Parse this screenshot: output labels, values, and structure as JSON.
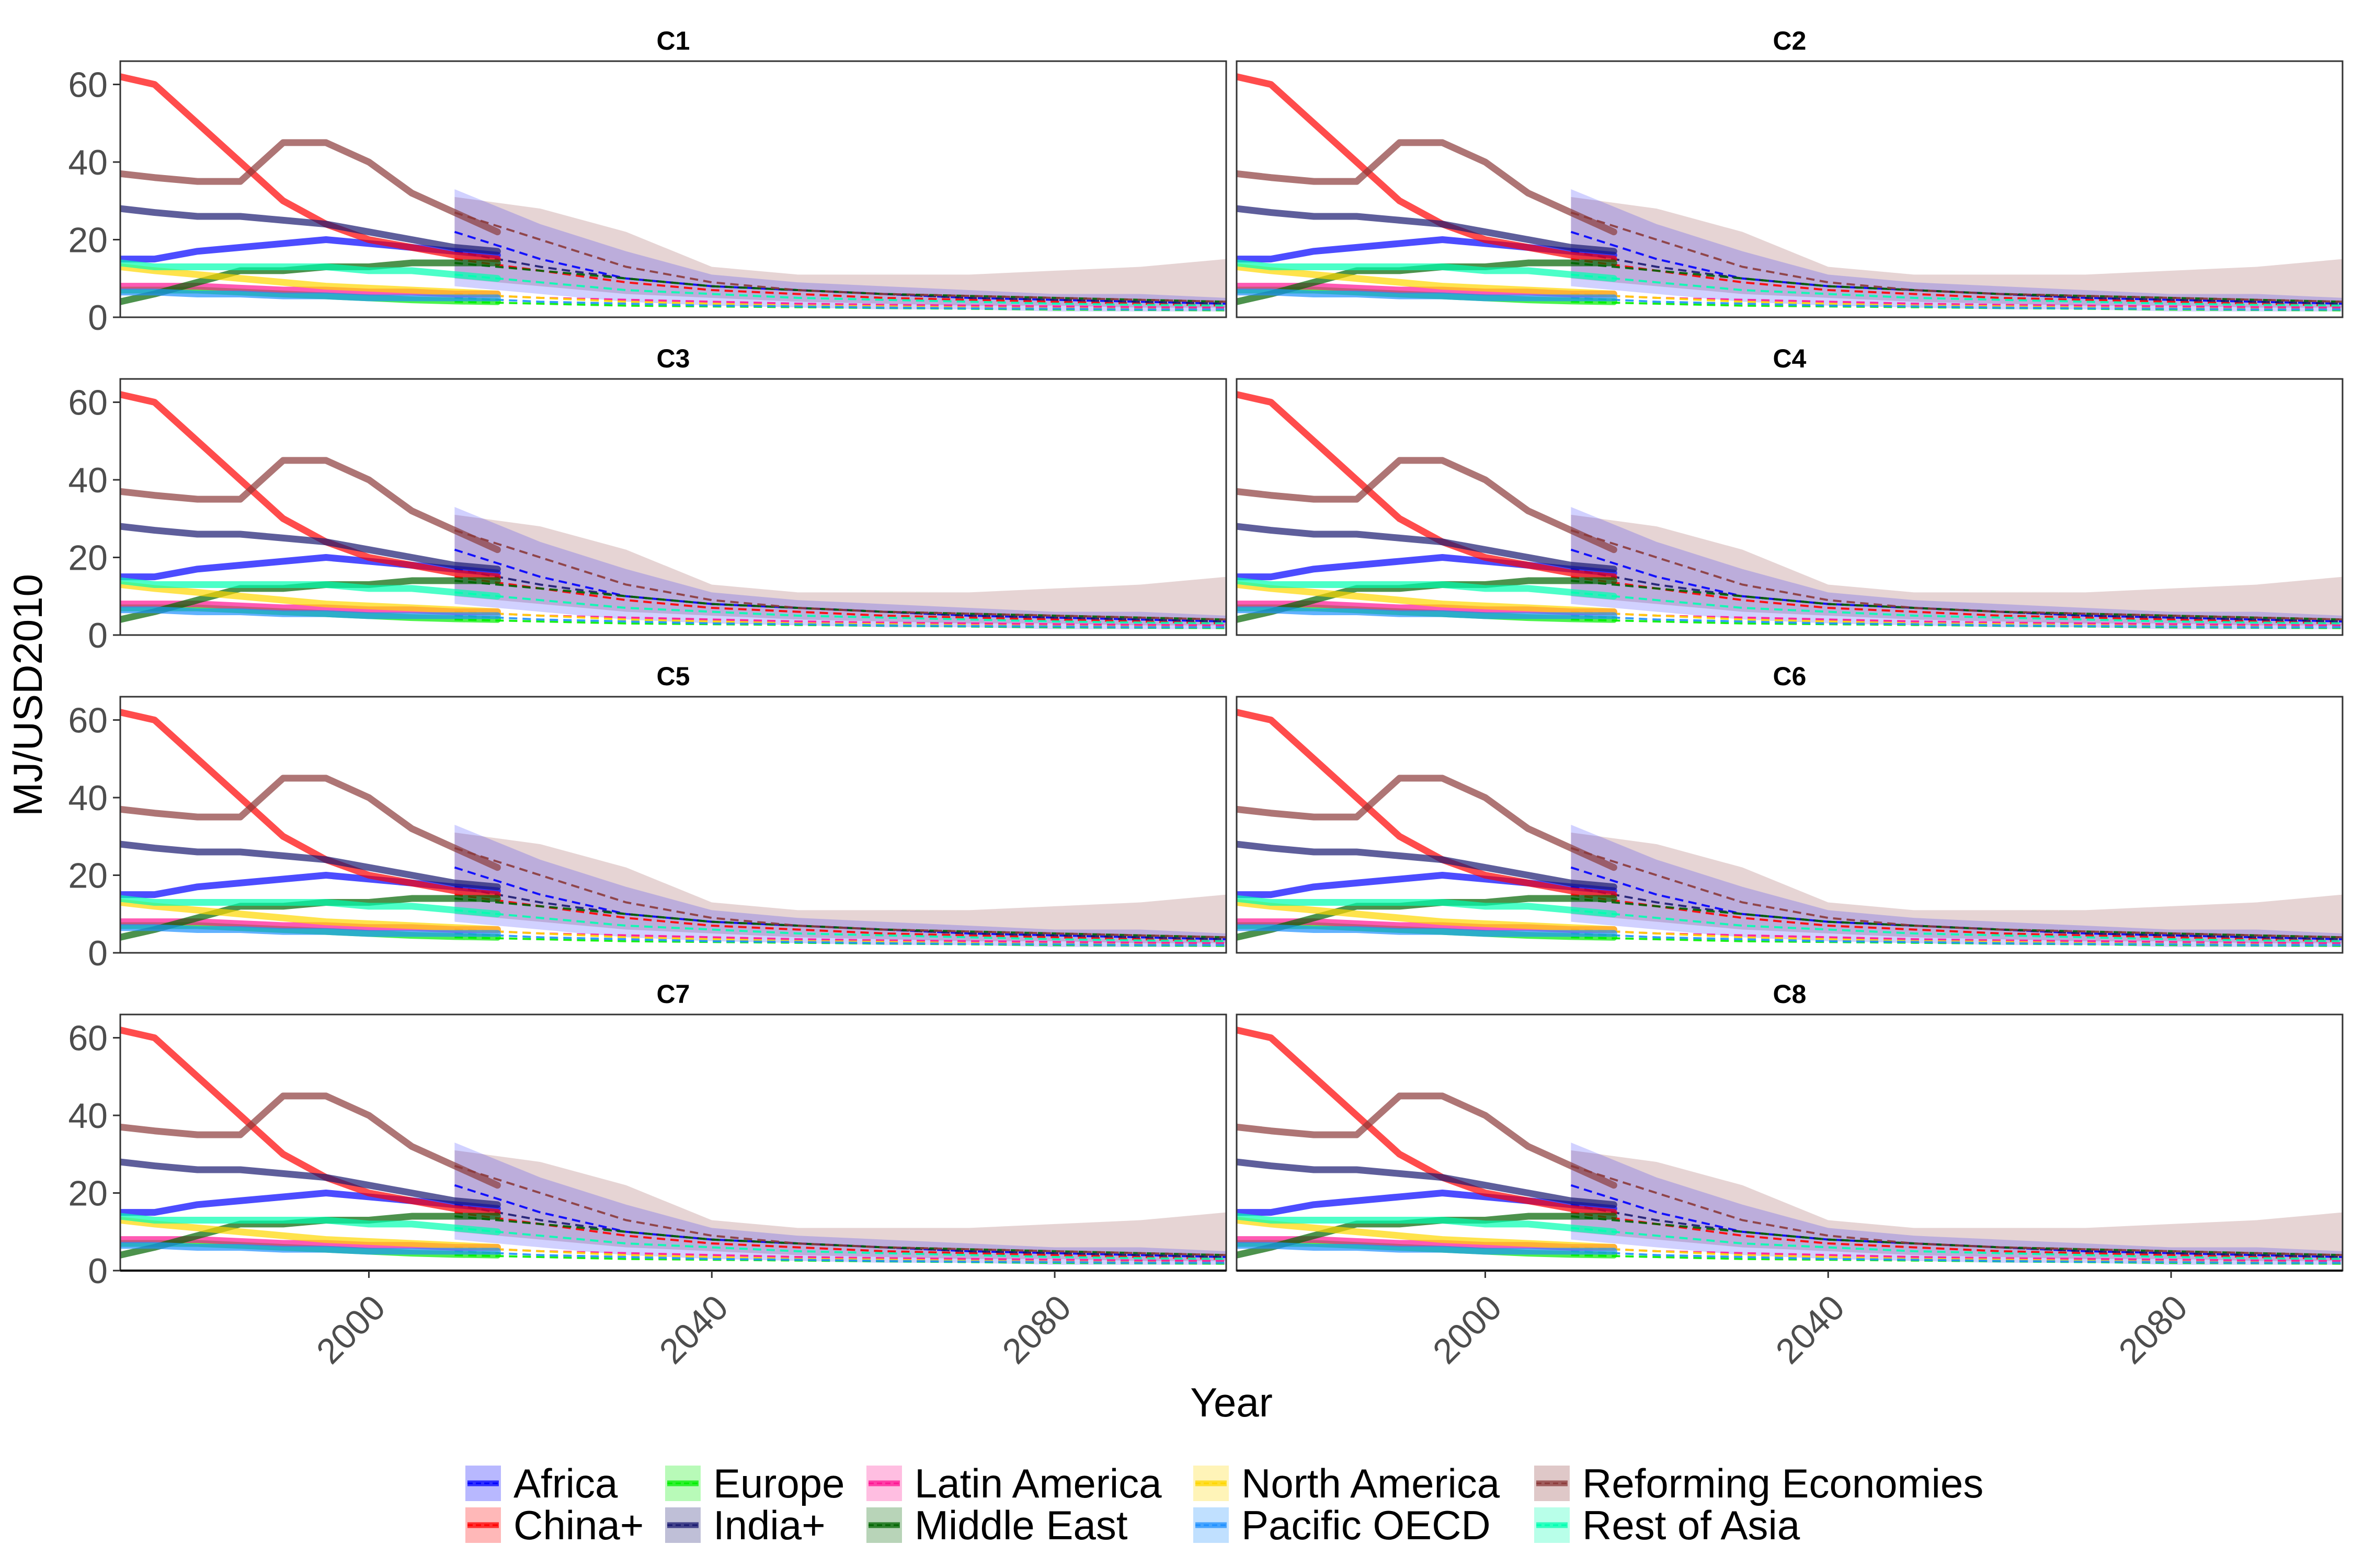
{
  "chart_data": {
    "type": "line",
    "ylabel": "MJ/USD2010",
    "xlabel": "Year",
    "xlim": [
      1971,
      2100
    ],
    "ylim": [
      0,
      66
    ],
    "xticks": [
      "2000",
      "2040",
      "2080"
    ],
    "yticks": [
      "0",
      "20",
      "40",
      "60"
    ],
    "grid": false,
    "legend_position": "bottom",
    "panels": [
      "C1",
      "C2",
      "C3",
      "C4",
      "C5",
      "C6",
      "C7",
      "C8"
    ],
    "regions": [
      {
        "name": "Africa",
        "color": "#0000ff"
      },
      {
        "name": "China+",
        "color": "#ff0000"
      },
      {
        "name": "Europe",
        "color": "#00ee00"
      },
      {
        "name": "India+",
        "color": "#191970"
      },
      {
        "name": "Latin America",
        "color": "#ff1493"
      },
      {
        "name": "Middle East",
        "color": "#006400"
      },
      {
        "name": "North America",
        "color": "#ffd700"
      },
      {
        "name": "Pacific OECD",
        "color": "#1e90ff"
      },
      {
        "name": "Reforming Economies",
        "color": "#8b3a3a"
      },
      {
        "name": "Rest of Asia",
        "color": "#00ffb0"
      }
    ],
    "historical": {
      "x": [
        1971,
        1975,
        1980,
        1985,
        1990,
        1995,
        2000,
        2005,
        2010,
        2015
      ],
      "series": [
        {
          "name": "Africa",
          "values": [
            15,
            15,
            17,
            18,
            19,
            20,
            19,
            18,
            17,
            16
          ]
        },
        {
          "name": "China+",
          "values": [
            62,
            60,
            50,
            40,
            30,
            24,
            20,
            18,
            16,
            15
          ]
        },
        {
          "name": "Europe",
          "values": [
            7,
            7,
            7,
            6.5,
            6,
            5.5,
            5,
            4.5,
            4.2,
            4
          ]
        },
        {
          "name": "India+",
          "values": [
            28,
            27,
            26,
            26,
            25,
            24,
            22,
            20,
            18,
            17
          ]
        },
        {
          "name": "Latin America",
          "values": [
            8,
            8,
            8,
            7.5,
            7,
            7,
            6.5,
            6.5,
            6,
            6
          ]
        },
        {
          "name": "Middle East",
          "values": [
            4,
            6,
            9,
            12,
            12,
            13,
            13,
            14,
            14,
            14
          ]
        },
        {
          "name": "North America",
          "values": [
            13,
            12,
            11,
            10,
            9,
            8,
            7.5,
            7,
            6.5,
            6
          ]
        },
        {
          "name": "Pacific OECD",
          "values": [
            6.5,
            6.5,
            6,
            6,
            5.5,
            5.5,
            5,
            5,
            5,
            5
          ]
        },
        {
          "name": "Reforming Economies",
          "values": [
            37,
            36,
            35,
            35,
            45,
            45,
            40,
            32,
            27,
            22
          ]
        },
        {
          "name": "Rest of Asia",
          "values": [
            14,
            13,
            13,
            13,
            13,
            13,
            12,
            12,
            11,
            10
          ]
        }
      ]
    },
    "projection_x": [
      2010,
      2020,
      2030,
      2040,
      2050,
      2060,
      2070,
      2080,
      2090,
      2100
    ],
    "projection_median": [
      {
        "name": "Africa",
        "values": [
          22,
          15,
          10,
          8,
          7,
          6,
          5,
          4.5,
          4,
          3.5
        ]
      },
      {
        "name": "China+",
        "values": [
          15,
          12,
          9,
          7,
          6,
          5,
          4.5,
          4,
          3.5,
          3
        ]
      },
      {
        "name": "Europe",
        "values": [
          4,
          3.5,
          3,
          2.8,
          2.6,
          2.4,
          2.2,
          2,
          1.9,
          1.8
        ]
      },
      {
        "name": "India+",
        "values": [
          17,
          13,
          10,
          8,
          7,
          6,
          5,
          4.5,
          4,
          3.5
        ]
      },
      {
        "name": "Latin America",
        "values": [
          6,
          5,
          4.5,
          4,
          3.5,
          3.2,
          3,
          2.8,
          2.6,
          2.5
        ]
      },
      {
        "name": "Middle East",
        "values": [
          14,
          12,
          10,
          8,
          7,
          6,
          5.5,
          5,
          4.5,
          4
        ]
      },
      {
        "name": "North America",
        "values": [
          6,
          5,
          4,
          3.5,
          3,
          2.8,
          2.5,
          2.3,
          2.1,
          2
        ]
      },
      {
        "name": "Pacific OECD",
        "values": [
          5,
          4,
          3.5,
          3,
          2.8,
          2.5,
          2.3,
          2.2,
          2,
          2
        ]
      },
      {
        "name": "Reforming Economies",
        "values": [
          27,
          20,
          13,
          9,
          7,
          6,
          5.5,
          5,
          4.5,
          4
        ]
      },
      {
        "name": "Rest of Asia",
        "values": [
          11,
          9,
          7,
          6,
          5,
          4.5,
          4,
          3.5,
          3.2,
          3
        ]
      }
    ],
    "projection_band_reforming": {
      "upper": [
        31,
        28,
        22,
        13,
        11,
        11,
        11,
        12,
        13,
        15
      ],
      "lower": [
        10,
        8,
        6,
        5,
        4,
        3.5,
        3,
        3,
        2.5,
        2.5
      ]
    },
    "projection_band_africa": {
      "upper": [
        33,
        24,
        17,
        11,
        9,
        8,
        7,
        6,
        6,
        5
      ],
      "lower": [
        8,
        6,
        4,
        3,
        2.5,
        2,
        2,
        1.5,
        1.5,
        1.5
      ]
    }
  }
}
